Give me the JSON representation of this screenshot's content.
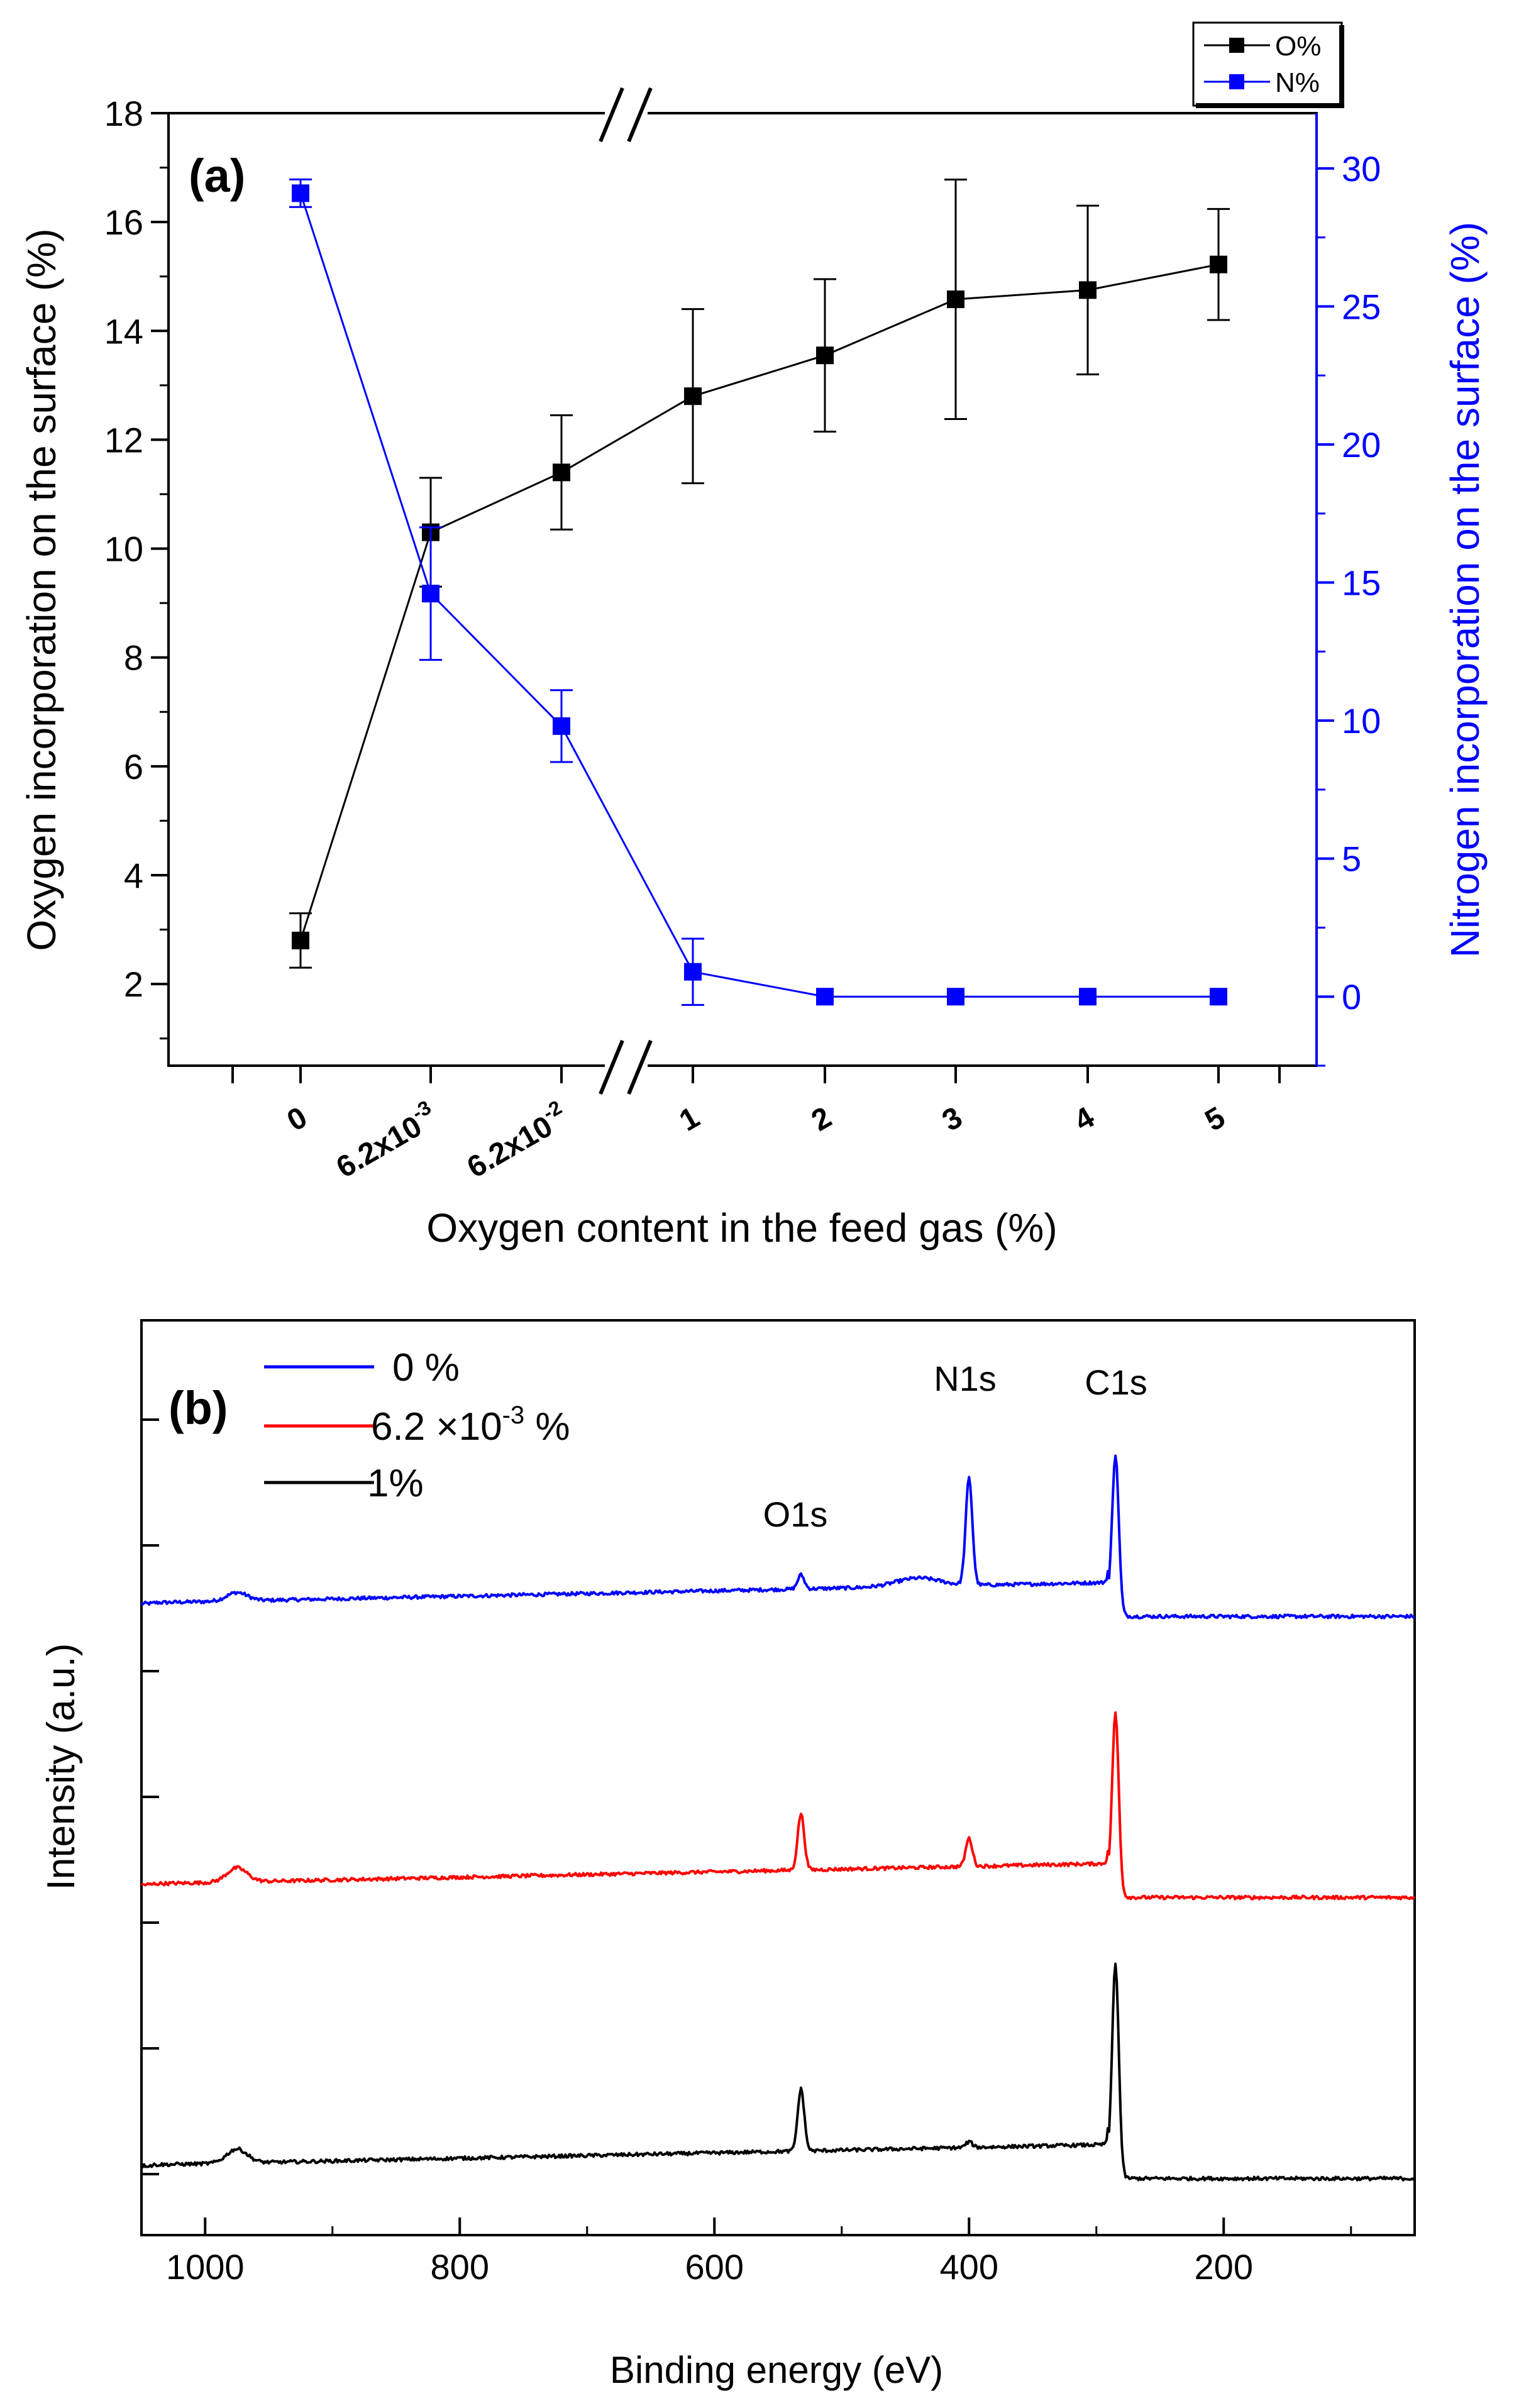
{
  "colors": {
    "black_series": "#000000",
    "blue_series": "#0000ff",
    "red_series": "#ff0000",
    "axis": "#000000",
    "right_axis": "#0000ff"
  },
  "chart_data": [
    {
      "type": "line",
      "panel_label": "(a)",
      "title": "",
      "xlabel": "Oxygen content in the feed gas (%)",
      "ylabel_left": "Oxygen incorporation on the surface (%)",
      "ylabel_right": "Nitrogen incorporation on the surface (%)",
      "categories": [
        "0",
        "6.2x10",
        "6.2x10",
        "1",
        "2",
        "3",
        "4",
        "5"
      ],
      "category_superscripts": [
        "",
        "-3",
        "-2",
        "",
        "",
        "",
        "",
        ""
      ],
      "axis_break": "//",
      "ylim_left": [
        0.5,
        18
      ],
      "yticks_left": [
        "2",
        "4",
        "6",
        "8",
        "10",
        "12",
        "14",
        "16",
        "18"
      ],
      "ylim_right": [
        -2.5,
        32
      ],
      "yticks_right": [
        "0",
        "5",
        "10",
        "15",
        "20",
        "25",
        "30"
      ],
      "legend_position": "top-right",
      "series": [
        {
          "name": "O%",
          "axis": "left",
          "color": "#000000",
          "values": [
            2.8,
            10.3,
            11.4,
            12.8,
            13.55,
            14.58,
            14.75,
            15.22
          ],
          "errors": [
            0.5,
            1.0,
            1.05,
            1.6,
            1.4,
            2.2,
            1.55,
            1.02
          ]
        },
        {
          "name": "N%",
          "axis": "right",
          "color": "#0000ff",
          "values": [
            29.1,
            14.6,
            9.8,
            0.9,
            0.0,
            0.0,
            0.0,
            0.0
          ],
          "errors": [
            0.5,
            2.4,
            1.3,
            1.2,
            0.0,
            0.0,
            0.0,
            0.0
          ]
        }
      ]
    },
    {
      "type": "line",
      "panel_label": "(b)",
      "title": "",
      "xlabel": "Binding energy (eV)",
      "ylabel": "Intensity (a.u.)",
      "xlim": [
        1050,
        50
      ],
      "xticks": [
        "1000",
        "800",
        "600",
        "400",
        "200"
      ],
      "legend_position": "top-left",
      "peak_labels": [
        "O1s",
        "N1s",
        "C1s"
      ],
      "series": [
        {
          "name": "0 %",
          "color": "#0000ff",
          "offset": 2.0,
          "baseline_high_be": 0.12,
          "baseline_low_be": 0.0,
          "step_at": 290,
          "peaks": [
            {
              "center": 975,
              "height": 0.03
            },
            {
              "center": 532,
              "height": 0.05
            },
            {
              "center": 400,
              "height": 0.38
            },
            {
              "center": 285,
              "height": 0.56
            }
          ]
        },
        {
          "name": "6.2 ×10",
          "name_superscript": "-3",
          "name_suffix": " %",
          "color": "#ff0000",
          "offset": 1.0,
          "baseline_high_be": 0.12,
          "baseline_low_be": 0.0,
          "step_at": 290,
          "peaks": [
            {
              "center": 975,
              "height": 0.05
            },
            {
              "center": 532,
              "height": 0.2
            },
            {
              "center": 400,
              "height": 0.1
            },
            {
              "center": 285,
              "height": 0.64
            }
          ]
        },
        {
          "name": "1%",
          "color": "#000000",
          "offset": 0.0,
          "baseline_high_be": 0.12,
          "baseline_low_be": 0.0,
          "step_at": 290,
          "peaks": [
            {
              "center": 975,
              "height": 0.05
            },
            {
              "center": 532,
              "height": 0.22
            },
            {
              "center": 400,
              "height": 0.02
            },
            {
              "center": 285,
              "height": 0.75
            }
          ]
        }
      ]
    }
  ]
}
